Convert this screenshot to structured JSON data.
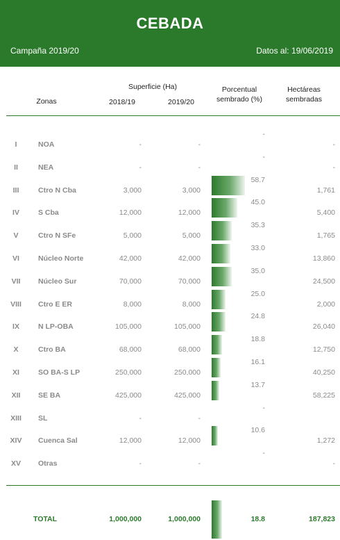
{
  "header": {
    "title": "CEBADA",
    "campaign": "Campaña 2019/20",
    "as_of": "Datos al: 19/06/2019"
  },
  "columns": {
    "zonas": "Zonas",
    "superficie": "Superficie (Ha)",
    "year_prev": "2018/19",
    "year_curr": "2019/20",
    "pct_line1": "Porcentual",
    "pct_line2": "sembrado (%)",
    "ha_line1": "Hectáreas",
    "ha_line2": "sembradas"
  },
  "rows": [
    {
      "roman": "I",
      "zone": "NOA",
      "prev": "-",
      "curr": "-",
      "pct": "-",
      "pct_value": 0,
      "ha": "-"
    },
    {
      "roman": "II",
      "zone": "NEA",
      "prev": "-",
      "curr": "-",
      "pct": "-",
      "pct_value": 0,
      "ha": "-"
    },
    {
      "roman": "III",
      "zone": "Ctro N Cba",
      "prev": "3,000",
      "curr": "3,000",
      "pct": "58.7",
      "pct_value": 58.7,
      "ha": "1,761"
    },
    {
      "roman": "IV",
      "zone": "S Cba",
      "prev": "12,000",
      "curr": "12,000",
      "pct": "45.0",
      "pct_value": 45.0,
      "ha": "5,400"
    },
    {
      "roman": "V",
      "zone": "Ctro N SFe",
      "prev": "5,000",
      "curr": "5,000",
      "pct": "35.3",
      "pct_value": 35.3,
      "ha": "1,765"
    },
    {
      "roman": "VI",
      "zone": "Núcleo Norte",
      "prev": "42,000",
      "curr": "42,000",
      "pct": "33.0",
      "pct_value": 33.0,
      "ha": "13,860"
    },
    {
      "roman": "VII",
      "zone": "Núcleo Sur",
      "prev": "70,000",
      "curr": "70,000",
      "pct": "35.0",
      "pct_value": 35.0,
      "ha": "24,500"
    },
    {
      "roman": "VIII",
      "zone": "Ctro E ER",
      "prev": "8,000",
      "curr": "8,000",
      "pct": "25.0",
      "pct_value": 25.0,
      "ha": "2,000"
    },
    {
      "roman": "IX",
      "zone": "N LP-OBA",
      "prev": "105,000",
      "curr": "105,000",
      "pct": "24.8",
      "pct_value": 24.8,
      "ha": "26,040"
    },
    {
      "roman": "X",
      "zone": "Ctro BA",
      "prev": "68,000",
      "curr": "68,000",
      "pct": "18.8",
      "pct_value": 18.8,
      "ha": "12,750"
    },
    {
      "roman": "XI",
      "zone": "SO BA-S LP",
      "prev": "250,000",
      "curr": "250,000",
      "pct": "16.1",
      "pct_value": 16.1,
      "ha": "40,250"
    },
    {
      "roman": "XII",
      "zone": "SE BA",
      "prev": "425,000",
      "curr": "425,000",
      "pct": "13.7",
      "pct_value": 13.7,
      "ha": "58,225"
    },
    {
      "roman": "XIII",
      "zone": "SL",
      "prev": "-",
      "curr": "-",
      "pct": "-",
      "pct_value": 0,
      "ha": ""
    },
    {
      "roman": "XIV",
      "zone": "Cuenca Sal",
      "prev": "12,000",
      "curr": "12,000",
      "pct": "10.6",
      "pct_value": 10.6,
      "ha": "1,272"
    },
    {
      "roman": "XV",
      "zone": "Otras",
      "prev": "-",
      "curr": "-",
      "pct": "-",
      "pct_value": 0,
      "ha": "-"
    }
  ],
  "total": {
    "label": "TOTAL",
    "prev": "1,000,000",
    "curr": "1,000,000",
    "pct": "18.8",
    "pct_value": 18.8,
    "ha": "187,823"
  },
  "colors": {
    "header_bg": "#2b7a2b",
    "bar": "#2d7a2d",
    "text_muted": "#8a8a8a"
  }
}
